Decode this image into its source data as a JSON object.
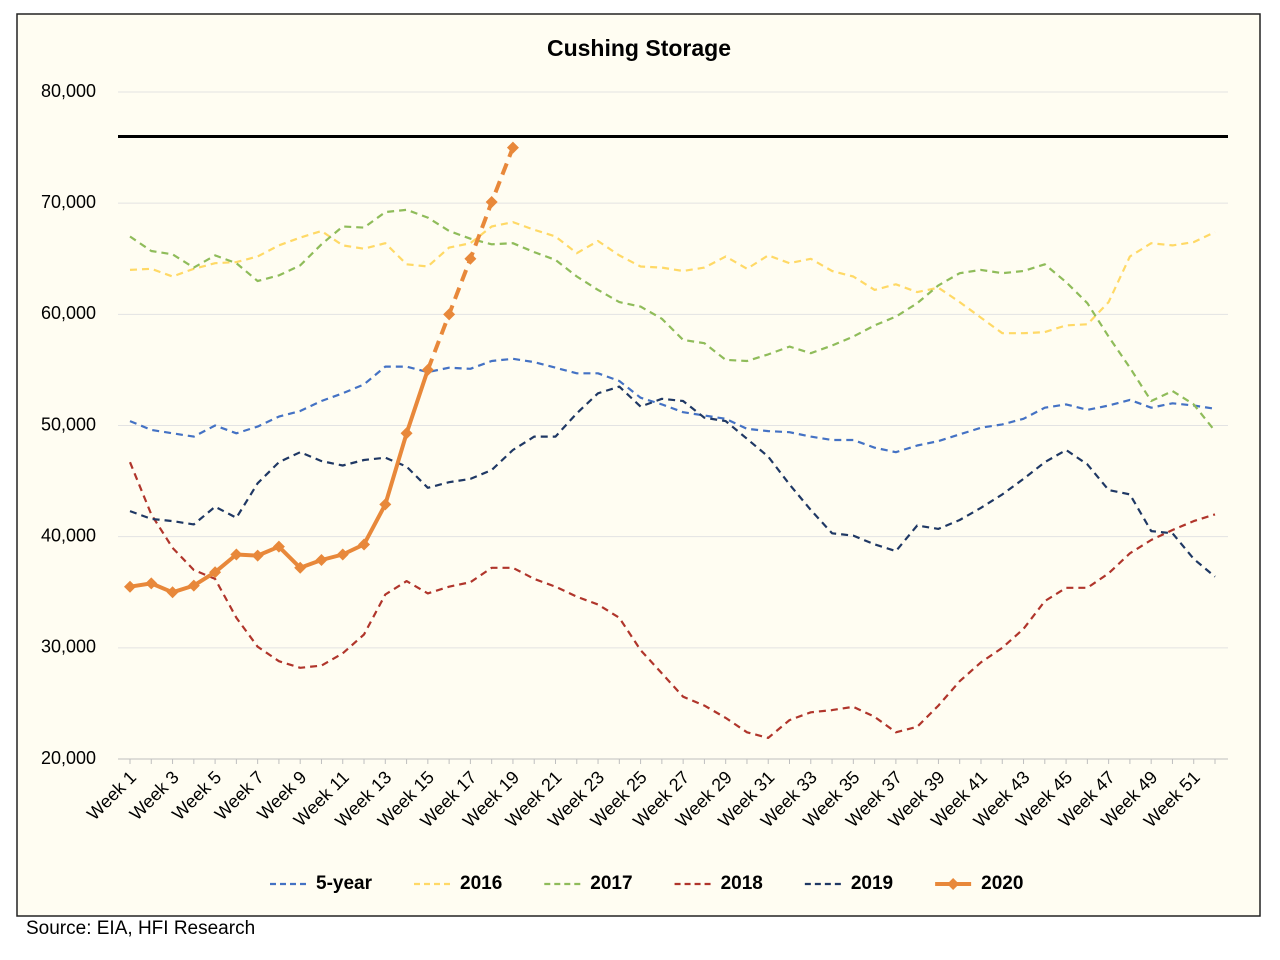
{
  "chart_data": {
    "type": "line",
    "title": "Cushing Storage",
    "source": "Source: EIA, HFI Research",
    "categories": [
      "Week 1",
      null,
      "Week 3",
      null,
      "Week 5",
      null,
      "Week 7",
      null,
      "Week 9",
      null,
      "Week 11",
      null,
      "Week 13",
      null,
      "Week 15",
      null,
      "Week 17",
      null,
      "Week 19",
      null,
      "Week 21",
      null,
      "Week 23",
      null,
      "Week 25",
      null,
      "Week 27",
      null,
      "Week 29",
      null,
      "Week 31",
      null,
      "Week 33",
      null,
      "Week 35",
      null,
      "Week 37",
      null,
      "Week 39",
      null,
      "Week 41",
      null,
      "Week 43",
      null,
      "Week 45",
      null,
      "Week 47",
      null,
      "Week 49",
      null,
      "Week 51",
      null
    ],
    "ylim": [
      20000,
      80000
    ],
    "yticks": [
      {
        "value": 20000,
        "label": "20,000"
      },
      {
        "value": 30000,
        "label": "30,000"
      },
      {
        "value": 40000,
        "label": "40,000"
      },
      {
        "value": 50000,
        "label": "50,000"
      },
      {
        "value": 60000,
        "label": "60,000"
      },
      {
        "value": 70000,
        "label": "70,000"
      },
      {
        "value": 80000,
        "label": "80,000"
      }
    ],
    "grid": true,
    "legend": "bottom",
    "reference_line": {
      "value": 76000,
      "color": "#000000"
    },
    "series": [
      {
        "name": "5-year",
        "color": "#4472c4",
        "dash": true,
        "values": [
          50400,
          49600,
          49300,
          49000,
          50000,
          49300,
          49900,
          50800,
          51300,
          52200,
          52900,
          53700,
          55300,
          55300,
          54800,
          55200,
          55100,
          55800,
          56000,
          55700,
          55200,
          54700,
          54700,
          54000,
          52500,
          51900,
          51200,
          50900,
          50600,
          49700,
          49500,
          49400,
          49000,
          48700,
          48700,
          48000,
          47600,
          48200,
          48600,
          49200,
          49800,
          50100,
          50600,
          51600,
          51900,
          51400,
          51800,
          52300,
          51600,
          52000,
          51800,
          51500
        ]
      },
      {
        "name": "2016",
        "color": "#ffd966",
        "dash": true,
        "values": [
          64000,
          64100,
          63400,
          64100,
          64600,
          64700,
          65200,
          66200,
          66900,
          67500,
          66200,
          65900,
          66400,
          64500,
          64300,
          66000,
          66400,
          67900,
          68300,
          67600,
          67000,
          65500,
          66600,
          65300,
          64300,
          64200,
          63900,
          64200,
          65200,
          64100,
          65300,
          64600,
          65000,
          63900,
          63400,
          62200,
          62700,
          62000,
          62400,
          61100,
          59700,
          58300,
          58300,
          58400,
          59000,
          59100,
          61100,
          65200,
          66400,
          66200,
          66500,
          67400
        ]
      },
      {
        "name": "2017",
        "color": "#8fbc5a",
        "dash": true,
        "values": [
          67000,
          65700,
          65400,
          64200,
          65300,
          64600,
          63000,
          63500,
          64400,
          66300,
          67900,
          67800,
          69200,
          69400,
          68700,
          67500,
          66800,
          66300,
          66400,
          65600,
          64900,
          63400,
          62200,
          61100,
          60700,
          59600,
          57700,
          57400,
          55900,
          55800,
          56400,
          57100,
          56500,
          57200,
          58000,
          59000,
          59800,
          61000,
          62600,
          63700,
          64000,
          63700,
          63900,
          64500,
          62900,
          61000,
          58000,
          55200,
          52200,
          53100,
          51900,
          49500
        ]
      },
      {
        "name": "2018",
        "color": "#b0352b",
        "dash": true,
        "values": [
          46700,
          42000,
          39000,
          37000,
          36200,
          32700,
          30100,
          28800,
          28200,
          28400,
          29500,
          31200,
          34800,
          36000,
          34900,
          35500,
          35900,
          37200,
          37200,
          36200,
          35500,
          34600,
          33900,
          32700,
          29800,
          27700,
          25600,
          24800,
          23700,
          22400,
          21900,
          23500,
          24200,
          24400,
          24700,
          23800,
          22400,
          22900,
          24800,
          27000,
          28700,
          30000,
          31700,
          34200,
          35400,
          35400,
          36700,
          38500,
          39700,
          40600,
          41400,
          42000
        ]
      },
      {
        "name": "2019",
        "color": "#1f3864",
        "dash": true,
        "values": [
          42300,
          41600,
          41400,
          41100,
          42700,
          41700,
          44800,
          46700,
          47600,
          46800,
          46400,
          46900,
          47100,
          46300,
          44400,
          44900,
          45200,
          46000,
          47800,
          49000,
          49000,
          51100,
          52900,
          53500,
          51700,
          52400,
          52200,
          50700,
          50400,
          48800,
          47200,
          44700,
          42400,
          40300,
          40100,
          39300,
          38700,
          41000,
          40700,
          41500,
          42600,
          43800,
          45200,
          46700,
          47800,
          46500,
          44200,
          43800,
          40500,
          40300,
          38000,
          36400
        ]
      },
      {
        "name": "2020",
        "color": "#e8883a",
        "dash": false,
        "marker": "diamond",
        "dashed_from_index": 14,
        "values": [
          35500,
          35800,
          35000,
          35600,
          36800,
          38400,
          38300,
          39100,
          37200,
          37900,
          38400,
          39300,
          42900,
          49300,
          55000,
          60000,
          65000,
          70100,
          75000,
          null,
          null,
          null,
          null,
          null,
          null,
          null,
          null,
          null,
          null,
          null,
          null,
          null,
          null,
          null,
          null,
          null,
          null,
          null,
          null,
          null,
          null,
          null,
          null,
          null,
          null,
          null,
          null,
          null,
          null,
          null,
          null,
          null
        ]
      }
    ]
  }
}
